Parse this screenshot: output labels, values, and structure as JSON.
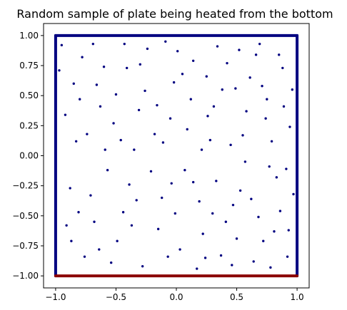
{
  "chart_data": {
    "type": "scatter",
    "title": "Random sample of plate being heated from the bottom",
    "xlabel": "",
    "ylabel": "",
    "xlim": [
      -1.1,
      1.1
    ],
    "ylim": [
      -1.1,
      1.1
    ],
    "grid": false,
    "x_ticks": [
      "−1.0",
      "−0.5",
      "0.0",
      "0.5",
      "1.0"
    ],
    "x_tick_values": [
      -1.0,
      -0.5,
      0.0,
      0.5,
      1.0
    ],
    "y_ticks": [
      "−1.00",
      "−0.75",
      "−0.50",
      "−0.25",
      "0.00",
      "0.25",
      "0.50",
      "0.75",
      "1.00"
    ],
    "y_tick_values": [
      -1.0,
      -0.75,
      -0.5,
      -0.25,
      0.0,
      0.25,
      0.5,
      0.75,
      1.0
    ],
    "series": [
      {
        "role": "interior sample points",
        "color": "#000080",
        "points": [
          [
            -0.95,
            0.92
          ],
          [
            -0.85,
            0.6
          ],
          [
            -0.83,
            0.12
          ],
          [
            -0.91,
            -0.58
          ],
          [
            -0.87,
            -0.71
          ],
          [
            -0.74,
            0.18
          ],
          [
            -0.68,
            -0.55
          ],
          [
            -0.6,
            0.74
          ],
          [
            -0.52,
            0.27
          ],
          [
            -0.41,
            0.73
          ],
          [
            -0.44,
            -0.47
          ],
          [
            -0.31,
            0.38
          ],
          [
            -0.28,
            -0.92
          ],
          [
            -0.18,
            0.18
          ],
          [
            -0.12,
            -0.35
          ],
          [
            -0.02,
            0.61
          ],
          [
            0.07,
            -0.12
          ],
          [
            0.14,
            0.79
          ],
          [
            0.22,
            -0.65
          ],
          [
            0.31,
            0.41
          ],
          [
            0.37,
            -0.83
          ],
          [
            0.45,
            0.09
          ],
          [
            0.53,
            -0.29
          ],
          [
            0.61,
            0.65
          ],
          [
            0.68,
            -0.51
          ],
          [
            0.74,
            0.31
          ],
          [
            0.83,
            -0.18
          ],
          [
            0.88,
            0.73
          ],
          [
            0.92,
            -0.84
          ],
          [
            0.96,
            0.55
          ],
          [
            -0.63,
            0.41
          ],
          [
            -0.57,
            -0.12
          ],
          [
            -0.49,
            -0.71
          ],
          [
            -0.35,
            0.05
          ],
          [
            -0.24,
            0.89
          ],
          [
            -0.15,
            -0.61
          ],
          [
            -0.05,
            0.31
          ],
          [
            0.03,
            -0.78
          ],
          [
            0.12,
            0.47
          ],
          [
            0.19,
            -0.38
          ],
          [
            0.28,
            0.13
          ],
          [
            0.34,
            0.91
          ],
          [
            0.41,
            -0.55
          ],
          [
            0.49,
            0.56
          ],
          [
            0.57,
            -0.05
          ],
          [
            0.66,
            0.84
          ],
          [
            0.72,
            -0.71
          ],
          [
            0.79,
            0.12
          ],
          [
            0.86,
            -0.46
          ],
          [
            0.94,
            0.24
          ],
          [
            -0.78,
            0.82
          ],
          [
            -0.71,
            -0.33
          ],
          [
            -0.66,
            0.59
          ],
          [
            -0.54,
            -0.89
          ],
          [
            -0.46,
            0.13
          ],
          [
            -0.39,
            -0.24
          ],
          [
            -0.26,
            0.54
          ],
          [
            -0.21,
            -0.13
          ],
          [
            -0.09,
            0.95
          ],
          [
            -0.01,
            -0.48
          ],
          [
            0.09,
            0.22
          ],
          [
            0.17,
            -0.94
          ],
          [
            0.25,
            0.66
          ],
          [
            0.33,
            -0.21
          ],
          [
            0.42,
            0.77
          ],
          [
            0.5,
            -0.69
          ],
          [
            0.58,
            0.37
          ],
          [
            0.64,
            -0.88
          ],
          [
            0.71,
            0.58
          ],
          [
            0.81,
            -0.63
          ],
          [
            0.89,
            0.41
          ],
          [
            0.97,
            -0.32
          ],
          [
            -0.92,
            0.34
          ],
          [
            -0.88,
            -0.27
          ],
          [
            -0.8,
            0.47
          ],
          [
            -0.76,
            -0.84
          ],
          [
            -0.59,
            0.05
          ],
          [
            -0.5,
            0.51
          ],
          [
            -0.37,
            -0.58
          ],
          [
            -0.3,
            0.76
          ],
          [
            -0.16,
            0.42
          ],
          [
            -0.07,
            -0.84
          ],
          [
            0.05,
            0.68
          ],
          [
            0.14,
            -0.22
          ],
          [
            0.21,
            0.05
          ],
          [
            0.3,
            -0.48
          ],
          [
            0.38,
            0.55
          ],
          [
            0.46,
            -0.91
          ],
          [
            0.55,
            0.17
          ],
          [
            0.62,
            -0.36
          ],
          [
            0.69,
            0.93
          ],
          [
            0.77,
            -0.09
          ],
          [
            0.85,
            0.84
          ],
          [
            0.93,
            -0.62
          ],
          [
            -0.97,
            0.71
          ],
          [
            -0.69,
            0.93
          ],
          [
            -0.43,
            0.93
          ],
          [
            -0.11,
            0.11
          ],
          [
            0.01,
            0.87
          ],
          [
            0.26,
            0.33
          ],
          [
            0.52,
            0.88
          ],
          [
            0.75,
            0.47
          ],
          [
            -0.81,
            -0.47
          ],
          [
            -0.64,
            -0.78
          ],
          [
            -0.33,
            -0.37
          ],
          [
            -0.04,
            -0.23
          ],
          [
            0.24,
            -0.85
          ],
          [
            0.47,
            -0.41
          ],
          [
            0.78,
            -0.93
          ],
          [
            0.91,
            -0.11
          ]
        ]
      },
      {
        "role": "top boundary",
        "color": "#000080",
        "points": [
          [
            -1.0,
            1.0
          ],
          [
            -0.5,
            1.0
          ],
          [
            0.0,
            1.0
          ],
          [
            0.5,
            1.0
          ],
          [
            1.0,
            1.0
          ]
        ]
      },
      {
        "role": "left boundary",
        "color": "#000080",
        "points": [
          [
            -1.0,
            -1.0
          ],
          [
            -1.0,
            -0.5
          ],
          [
            -1.0,
            0.0
          ],
          [
            -1.0,
            0.5
          ],
          [
            -1.0,
            1.0
          ]
        ]
      },
      {
        "role": "right boundary",
        "color": "#000080",
        "points": [
          [
            1.0,
            -1.0
          ],
          [
            1.0,
            -0.5
          ],
          [
            1.0,
            0.0
          ],
          [
            1.0,
            0.5
          ],
          [
            1.0,
            1.0
          ]
        ]
      },
      {
        "role": "bottom boundary (heated)",
        "color": "#8b0000",
        "points": [
          [
            -1.0,
            -1.0
          ],
          [
            -0.5,
            -1.0
          ],
          [
            0.0,
            -1.0
          ],
          [
            0.5,
            -1.0
          ],
          [
            1.0,
            -1.0
          ]
        ]
      }
    ]
  }
}
